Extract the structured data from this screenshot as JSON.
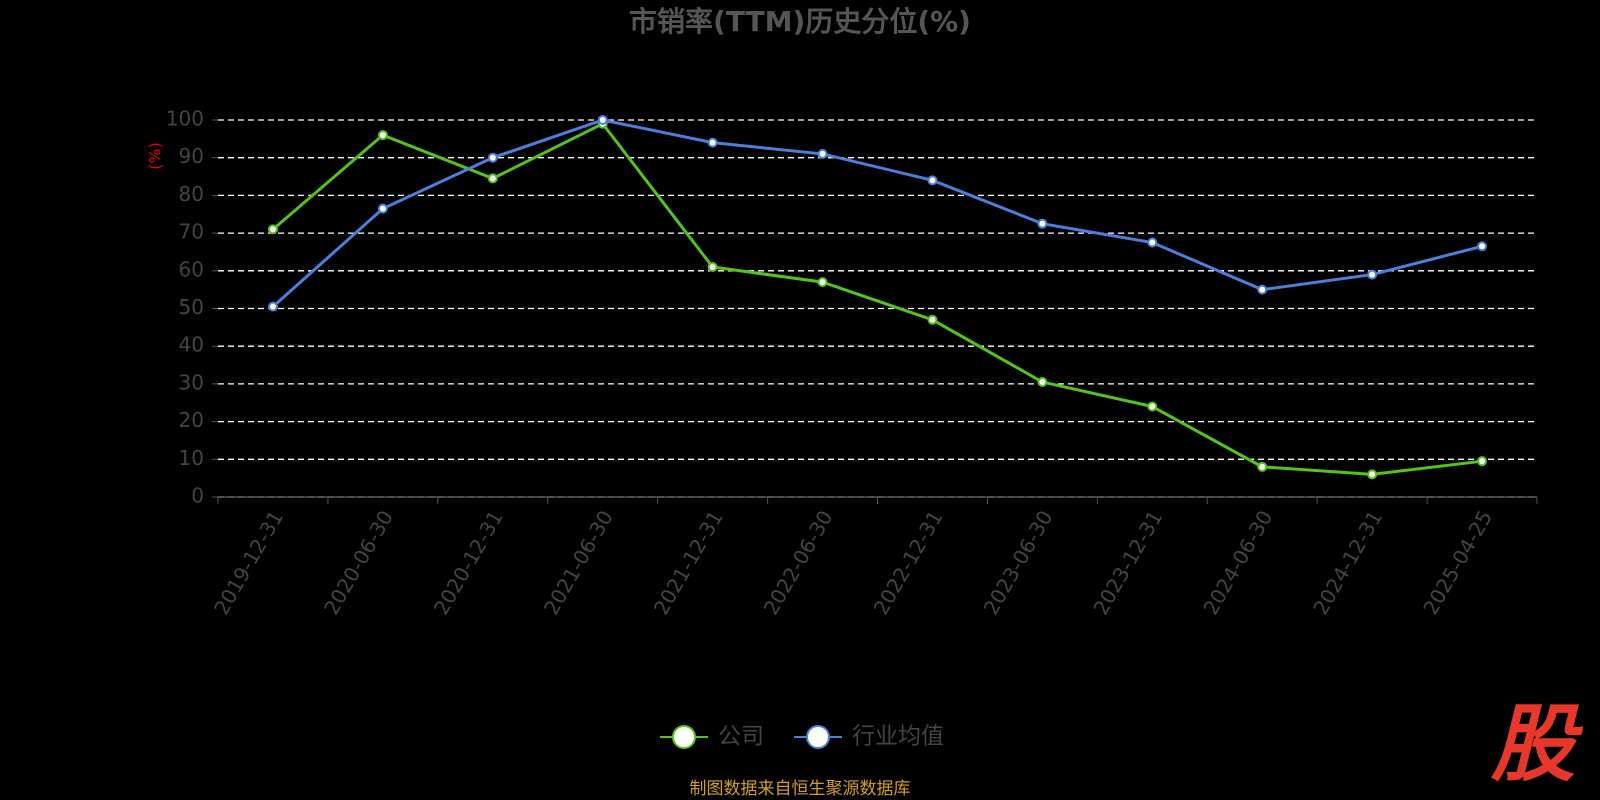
{
  "chart_data": {
    "type": "line",
    "title": "市销率(TTM)历史分位(%)",
    "y_label": "(%)",
    "categories": [
      "2019-12-31",
      "2020-06-30",
      "2020-12-31",
      "2021-06-30",
      "2021-12-31",
      "2022-06-30",
      "2022-12-31",
      "2023-06-30",
      "2023-12-31",
      "2024-06-30",
      "2024-12-31",
      "2025-04-25"
    ],
    "series": [
      {
        "name": "公司",
        "color": "#52c41a",
        "values": [
          71,
          96,
          84.5,
          99,
          61,
          57,
          47,
          30.5,
          24,
          8,
          6,
          9.5
        ]
      },
      {
        "name": "行业均值",
        "color": "#4a7fdc",
        "values": [
          50.5,
          76.5,
          90,
          100,
          94,
          91,
          84,
          72.5,
          67.5,
          55,
          59,
          66.5
        ]
      }
    ],
    "ylim": [
      0,
      100
    ],
    "yticks": [
      0,
      10,
      20,
      30,
      40,
      50,
      60,
      70,
      80,
      90,
      100
    ],
    "grid": true,
    "source": "制图数据来自恒生聚源数据库",
    "logo": "股"
  }
}
